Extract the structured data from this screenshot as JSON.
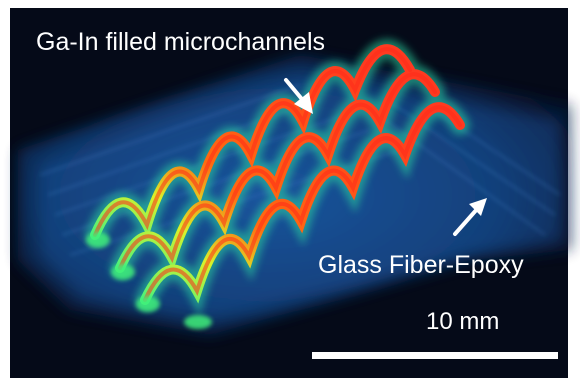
{
  "figure": {
    "labels": {
      "channels": "Ga-In filled microchannels",
      "epoxy": "Glass Fiber-Epoxy",
      "scale": "10 mm"
    },
    "colors": {
      "background": "#050a18",
      "epoxy_block": "#1f64b8",
      "channel_core": "#ff3b12",
      "channel_edge": "#45f078",
      "annotation": "#ffffff"
    },
    "icons": [
      "arrow-icon",
      "arrow-icon"
    ]
  }
}
